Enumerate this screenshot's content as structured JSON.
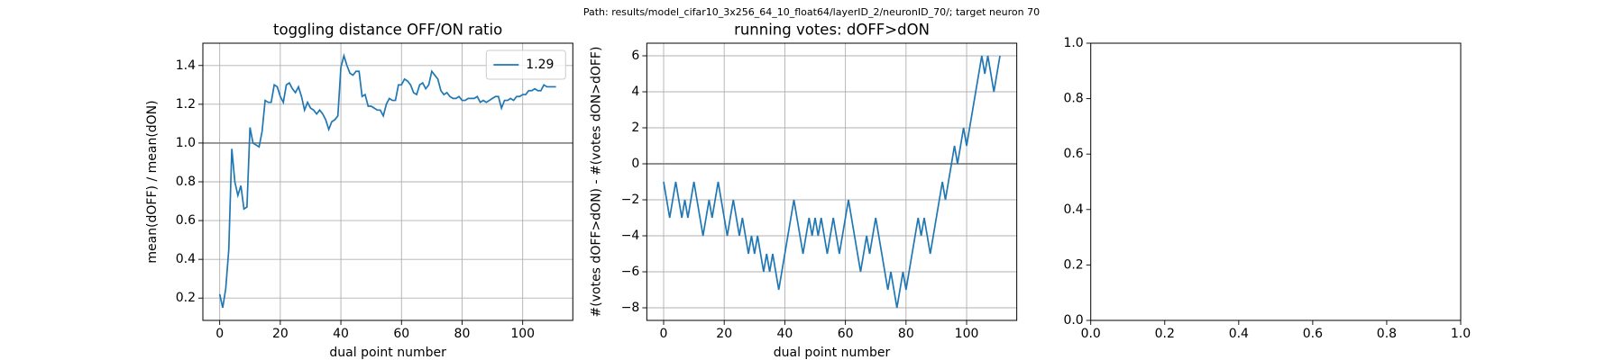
{
  "title": "Path: results/model_cifar10_3x256_64_10_float64/layerID_2/neuronID_70/; target neuron 70",
  "chart_data": [
    {
      "type": "line",
      "title": "toggling distance OFF/ON ratio",
      "xlabel": "dual point number",
      "ylabel": "mean(dOFF) / mean(dON)",
      "xlim": [
        -5.55,
        116.55
      ],
      "ylim": [
        0.085,
        1.515
      ],
      "xticks": [
        0,
        20,
        40,
        60,
        80,
        100
      ],
      "yticks": [
        0.2,
        0.4,
        0.6,
        0.8,
        {
          "value": 1.0,
          "label": "1.0"
        },
        1.2,
        1.4
      ],
      "grid": true,
      "hline": 1,
      "legend": "upper right",
      "x": [
        0,
        1,
        2,
        3,
        4,
        5,
        6,
        7,
        8,
        9,
        10,
        11,
        12,
        13,
        14,
        15,
        16,
        17,
        18,
        19,
        20,
        21,
        22,
        23,
        24,
        25,
        26,
        27,
        28,
        29,
        30,
        31,
        32,
        33,
        34,
        35,
        36,
        37,
        38,
        39,
        40,
        41,
        42,
        43,
        44,
        45,
        46,
        47,
        48,
        49,
        50,
        51,
        52,
        53,
        54,
        55,
        56,
        57,
        58,
        59,
        60,
        61,
        62,
        63,
        64,
        65,
        66,
        67,
        68,
        69,
        70,
        71,
        72,
        73,
        74,
        75,
        76,
        77,
        78,
        79,
        80,
        81,
        82,
        83,
        84,
        85,
        86,
        87,
        88,
        89,
        90,
        91,
        92,
        93,
        94,
        95,
        96,
        97,
        98,
        99,
        100,
        101,
        102,
        103,
        104,
        105,
        106,
        107,
        108,
        109,
        110,
        111
      ],
      "series": [
        {
          "name": "1.29",
          "color": "#1f77b4",
          "values": [
            0.22,
            0.15,
            0.25,
            0.45,
            0.97,
            0.8,
            0.73,
            0.78,
            0.66,
            0.67,
            1.08,
            1.0,
            0.99,
            0.98,
            1.06,
            1.22,
            1.21,
            1.21,
            1.3,
            1.29,
            1.24,
            1.21,
            1.3,
            1.31,
            1.28,
            1.26,
            1.29,
            1.24,
            1.17,
            1.21,
            1.18,
            1.17,
            1.15,
            1.17,
            1.15,
            1.12,
            1.07,
            1.11,
            1.12,
            1.14,
            1.39,
            1.45,
            1.4,
            1.36,
            1.35,
            1.37,
            1.37,
            1.24,
            1.25,
            1.19,
            1.19,
            1.18,
            1.17,
            1.17,
            1.14,
            1.2,
            1.23,
            1.22,
            1.22,
            1.3,
            1.3,
            1.33,
            1.32,
            1.3,
            1.26,
            1.25,
            1.3,
            1.31,
            1.28,
            1.3,
            1.37,
            1.35,
            1.33,
            1.27,
            1.25,
            1.26,
            1.24,
            1.23,
            1.23,
            1.24,
            1.22,
            1.22,
            1.23,
            1.23,
            1.23,
            1.24,
            1.21,
            1.22,
            1.21,
            1.22,
            1.23,
            1.24,
            1.24,
            1.18,
            1.22,
            1.22,
            1.23,
            1.22,
            1.24,
            1.24,
            1.25,
            1.25,
            1.27,
            1.27,
            1.28,
            1.27,
            1.27,
            1.3,
            1.29,
            1.29,
            1.29,
            1.29
          ]
        }
      ]
    },
    {
      "type": "line",
      "title": "running votes: dOFF>dON",
      "xlabel": "dual point number",
      "ylabel": "#(votes dOFF>dON) - #(votes dON>dOFF)",
      "xlim": [
        -5.55,
        116.55
      ],
      "ylim": [
        -8.7,
        6.7
      ],
      "xticks": [
        0,
        20,
        40,
        60,
        80,
        100
      ],
      "yticks": [
        {
          "value": -8,
          "label": "−8"
        },
        {
          "value": -6,
          "label": "−6"
        },
        {
          "value": -4,
          "label": "−4"
        },
        {
          "value": -2,
          "label": "−2"
        },
        0,
        2,
        4,
        6
      ],
      "grid": true,
      "hline": 0,
      "x": [
        0,
        1,
        2,
        3,
        4,
        5,
        6,
        7,
        8,
        9,
        10,
        11,
        12,
        13,
        14,
        15,
        16,
        17,
        18,
        19,
        20,
        21,
        22,
        23,
        24,
        25,
        26,
        27,
        28,
        29,
        30,
        31,
        32,
        33,
        34,
        35,
        36,
        37,
        38,
        39,
        40,
        41,
        42,
        43,
        44,
        45,
        46,
        47,
        48,
        49,
        50,
        51,
        52,
        53,
        54,
        55,
        56,
        57,
        58,
        59,
        60,
        61,
        62,
        63,
        64,
        65,
        66,
        67,
        68,
        69,
        70,
        71,
        72,
        73,
        74,
        75,
        76,
        77,
        78,
        79,
        80,
        81,
        82,
        83,
        84,
        85,
        86,
        87,
        88,
        89,
        90,
        91,
        92,
        93,
        94,
        95,
        96,
        97,
        98,
        99,
        100,
        101,
        102,
        103,
        104,
        105,
        106,
        107,
        108,
        109,
        110,
        111
      ],
      "series": [
        {
          "color": "#1f77b4",
          "values": [
            -1,
            -2,
            -3,
            -2,
            -1,
            -2,
            -3,
            -2,
            -3,
            -2,
            -1,
            -2,
            -3,
            -4,
            -3,
            -2,
            -3,
            -2,
            -1,
            -2,
            -3,
            -4,
            -3,
            -2,
            -3,
            -4,
            -3,
            -4,
            -5,
            -4,
            -5,
            -4,
            -5,
            -6,
            -5,
            -6,
            -5,
            -6,
            -7,
            -6,
            -5,
            -4,
            -3,
            -2,
            -3,
            -4,
            -5,
            -4,
            -3,
            -4,
            -3,
            -4,
            -3,
            -4,
            -5,
            -4,
            -3,
            -4,
            -5,
            -4,
            -3,
            -2,
            -3,
            -4,
            -5,
            -6,
            -5,
            -4,
            -5,
            -4,
            -3,
            -4,
            -5,
            -6,
            -7,
            -6,
            -7,
            -8,
            -7,
            -6,
            -7,
            -6,
            -5,
            -4,
            -3,
            -4,
            -3,
            -4,
            -5,
            -4,
            -3,
            -2,
            -1,
            -2,
            -1,
            0,
            1,
            0,
            1,
            2,
            1,
            2,
            3,
            4,
            5,
            6,
            5,
            6,
            5,
            4,
            5,
            6
          ]
        }
      ]
    },
    {
      "type": "line",
      "xlim": [
        0,
        1
      ],
      "ylim": [
        0,
        1
      ],
      "xticks": [
        {
          "value": 0,
          "label": "0.0"
        },
        0.2,
        0.4,
        0.6,
        0.8,
        {
          "value": 1,
          "label": "1.0"
        }
      ],
      "yticks": [
        {
          "value": 0,
          "label": "0.0"
        },
        0.2,
        0.4,
        0.6,
        0.8,
        {
          "value": 1,
          "label": "1.0"
        }
      ],
      "grid": false
    }
  ]
}
